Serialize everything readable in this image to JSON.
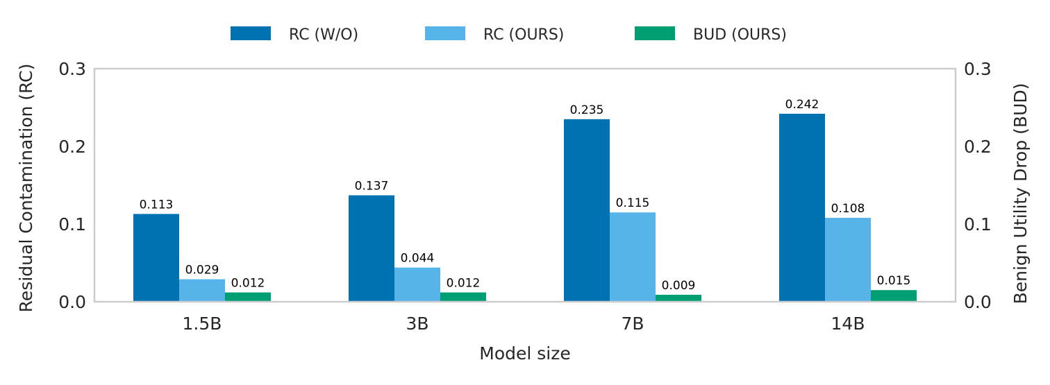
{
  "chart_data": {
    "type": "bar",
    "title": "",
    "xlabel": "Model size",
    "ylabel": "Residual Contamination (RC)",
    "y2label": "Benign Utility Drop (BUD)",
    "categories": [
      "1.5B",
      "3B",
      "7B",
      "14B"
    ],
    "ylim": [
      0,
      0.3
    ],
    "y2lim": [
      0,
      0.3
    ],
    "yticks": [
      "0.0",
      "0.1",
      "0.2",
      "0.3"
    ],
    "y2ticks": [
      "0.0",
      "0.1",
      "0.2",
      "0.3"
    ],
    "grid": false,
    "legend_position": "top-center",
    "series": [
      {
        "name": "RC (W/O)",
        "axis": "left",
        "color": "#0072B2",
        "values": [
          0.113,
          0.137,
          0.235,
          0.242
        ],
        "labels": [
          "0.113",
          "0.137",
          "0.235",
          "0.242"
        ]
      },
      {
        "name": "RC (OURS)",
        "axis": "left",
        "color": "#56B4E9",
        "values": [
          0.029,
          0.044,
          0.115,
          0.108
        ],
        "labels": [
          "0.029",
          "0.044",
          "0.115",
          "0.108"
        ]
      },
      {
        "name": "BUD (OURS)",
        "axis": "right",
        "color": "#009E73",
        "values": [
          0.012,
          0.012,
          0.009,
          0.015
        ],
        "labels": [
          "0.012",
          "0.012",
          "0.009",
          "0.015"
        ]
      }
    ]
  }
}
